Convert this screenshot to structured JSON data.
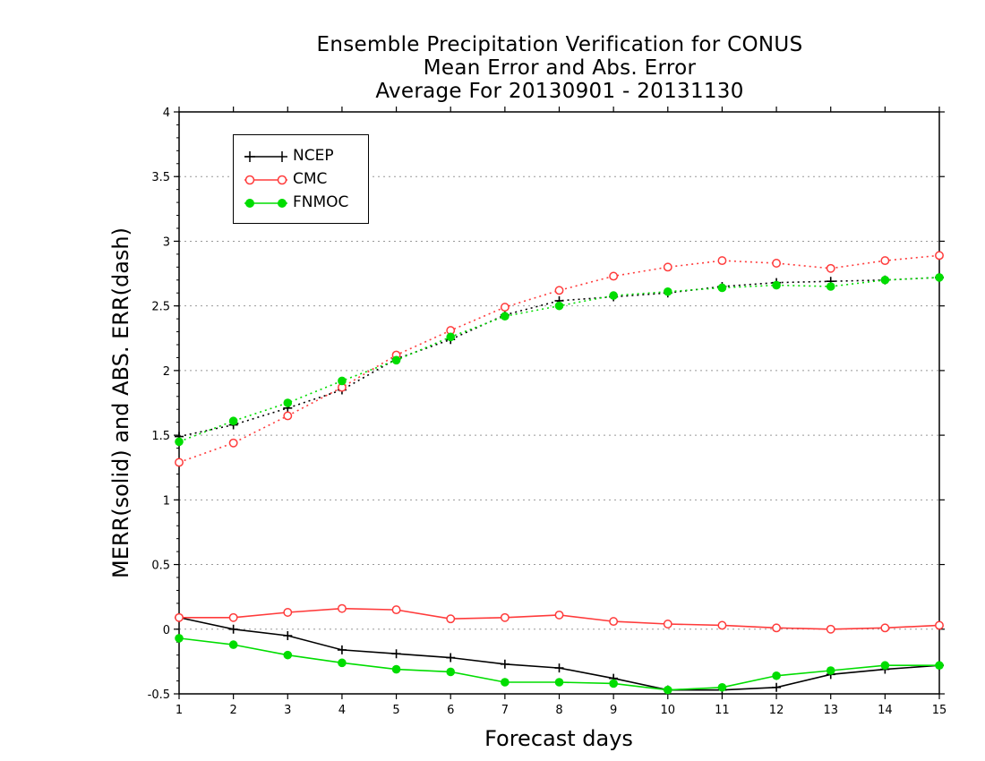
{
  "chart_data": {
    "type": "line",
    "title": "Ensemble Precipitation Verification for CONUS",
    "subtitle_lines": [
      "Mean Error and Abs. Error",
      "Average For 20130901 - 20131130"
    ],
    "xlabel": "Forecast days",
    "ylabel": "MERR(solid) and ABS. ERR(dash)",
    "x": [
      1,
      2,
      3,
      4,
      5,
      6,
      7,
      8,
      9,
      10,
      11,
      12,
      13,
      14,
      15
    ],
    "xlim": [
      1,
      15
    ],
    "ylim": [
      -0.5,
      4
    ],
    "yticks": [
      -0.5,
      0,
      0.5,
      1,
      1.5,
      2,
      2.5,
      3,
      3.5,
      4
    ],
    "ytick_labels": [
      "-0.5",
      "0",
      "0.5",
      "1",
      "1.5",
      "2",
      "2.5",
      "3",
      "3.5",
      "4"
    ],
    "xtick_labels": [
      "1",
      "2",
      "3",
      "4",
      "5",
      "6",
      "7",
      "8",
      "9",
      "10",
      "11",
      "12",
      "13",
      "14",
      "15"
    ],
    "grid": "horizontal dotted",
    "legend_position": "top-left",
    "series": [
      {
        "name": "NCEP",
        "color": "#000000",
        "marker": "plus",
        "mean_error": [
          0.09,
          0.0,
          -0.05,
          -0.16,
          -0.19,
          -0.22,
          -0.27,
          -0.3,
          -0.38,
          -0.47,
          -0.47,
          -0.45,
          -0.35,
          -0.31,
          -0.28
        ],
        "abs_error": [
          1.49,
          1.58,
          1.71,
          1.85,
          2.09,
          2.24,
          2.43,
          2.54,
          2.57,
          2.6,
          2.65,
          2.68,
          2.69,
          2.7,
          2.72
        ]
      },
      {
        "name": "CMC",
        "color": "#ff3b3b",
        "marker": "open-circle",
        "mean_error": [
          0.09,
          0.09,
          0.13,
          0.16,
          0.15,
          0.08,
          0.09,
          0.11,
          0.06,
          0.04,
          0.03,
          0.01,
          0.0,
          0.01,
          0.03
        ],
        "abs_error": [
          1.29,
          1.44,
          1.65,
          1.87,
          2.12,
          2.31,
          2.49,
          2.62,
          2.73,
          2.8,
          2.85,
          2.83,
          2.79,
          2.85,
          2.89
        ]
      },
      {
        "name": "FNMOC",
        "color": "#00dd00",
        "marker": "filled-circle",
        "mean_error": [
          -0.07,
          -0.12,
          -0.2,
          -0.26,
          -0.31,
          -0.33,
          -0.41,
          -0.41,
          -0.42,
          -0.47,
          -0.45,
          -0.36,
          -0.32,
          -0.28,
          -0.28
        ],
        "abs_error": [
          1.45,
          1.61,
          1.75,
          1.92,
          2.08,
          2.26,
          2.42,
          2.5,
          2.58,
          2.61,
          2.64,
          2.66,
          2.65,
          2.7,
          2.72
        ]
      }
    ]
  }
}
